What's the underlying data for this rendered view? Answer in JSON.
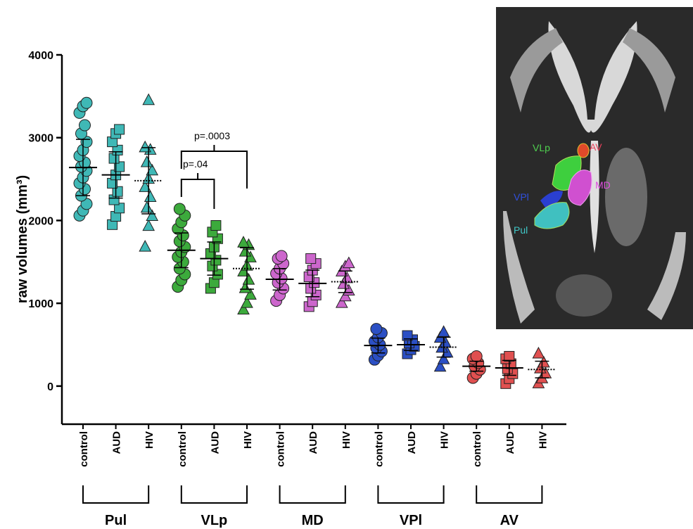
{
  "chart_data": {
    "type": "dot",
    "y_label": "raw volumes (mm³)",
    "ylim": [
      -460,
      4000
    ],
    "yticks": [
      0,
      1000,
      2000,
      3000,
      4000
    ],
    "categories": [
      "control",
      "AUD",
      "HIV",
      "control",
      "AUD",
      "HIV",
      "control",
      "AUD",
      "HIV",
      "control",
      "AUD",
      "HIV",
      "control",
      "AUD",
      "HIV"
    ],
    "groups": [
      "Pul",
      "VLp",
      "MD",
      "VPl",
      "AV"
    ],
    "colors": [
      "#3fb8b6",
      "#3caa3c",
      "#cc66cc",
      "#2b4fc4",
      "#e05050"
    ],
    "columns": [
      {
        "values": [
          2060,
          2120,
          2200,
          2300,
          2380,
          2450,
          2520,
          2600,
          2650,
          2700,
          2780,
          2850,
          2950,
          3050,
          3150,
          3300,
          3380,
          3420
        ],
        "mean": 2640,
        "sd": 340
      },
      {
        "values": [
          1950,
          2050,
          2150,
          2250,
          2350,
          2450,
          2550,
          2650,
          2750,
          2850,
          2950,
          3050,
          3100
        ],
        "mean": 2550,
        "sd": 280
      },
      {
        "values": [
          1680,
          1930,
          2050,
          2150,
          2280,
          2400,
          2500,
          2600,
          2700,
          2850,
          2880,
          3450
        ],
        "mean": 2480,
        "sd": 400
      },
      {
        "values": [
          1200,
          1280,
          1350,
          1420,
          1500,
          1560,
          1620,
          1680,
          1750,
          1820,
          1900,
          1980,
          2060,
          2140
        ],
        "mean": 1640,
        "sd": 210
      },
      {
        "values": [
          1180,
          1250,
          1350,
          1450,
          1520,
          1600,
          1680,
          1780,
          1860,
          1940
        ],
        "mean": 1540,
        "sd": 200
      },
      {
        "values": [
          920,
          1000,
          1100,
          1180,
          1280,
          1380,
          1450,
          1550,
          1620,
          1700,
          1730
        ],
        "mean": 1420,
        "sd": 250
      },
      {
        "values": [
          1030,
          1100,
          1180,
          1250,
          1300,
          1360,
          1420,
          1480,
          1540,
          1570
        ],
        "mean": 1290,
        "sd": 130
      },
      {
        "values": [
          960,
          1020,
          1100,
          1180,
          1250,
          1320,
          1400,
          1480,
          1540
        ],
        "mean": 1240,
        "sd": 160
      },
      {
        "values": [
          1000,
          1080,
          1150,
          1230,
          1300,
          1380,
          1440,
          1480
        ],
        "mean": 1260,
        "sd": 130
      },
      {
        "values": [
          320,
          370,
          420,
          460,
          500,
          540,
          590,
          640,
          690
        ],
        "mean": 490,
        "sd": 90
      },
      {
        "values": [
          390,
          440,
          480,
          520,
          560,
          610
        ],
        "mean": 500,
        "sd": 70
      },
      {
        "values": [
          230,
          320,
          400,
          460,
          520,
          580,
          650
        ],
        "mean": 470,
        "sd": 120
      },
      {
        "values": [
          100,
          150,
          200,
          240,
          280,
          330,
          360
        ],
        "mean": 240,
        "sd": 60
      },
      {
        "values": [
          30,
          90,
          150,
          210,
          270,
          330,
          360
        ],
        "mean": 220,
        "sd": 90
      },
      {
        "values": [
          30,
          90,
          150,
          210,
          280,
          390
        ],
        "mean": 200,
        "sd": 100
      }
    ],
    "annotations": [
      "p=.04",
      "p=.0003"
    ],
    "inset_labels": [
      "VLp",
      "AV",
      "VPl",
      "MD",
      "Pul"
    ]
  }
}
